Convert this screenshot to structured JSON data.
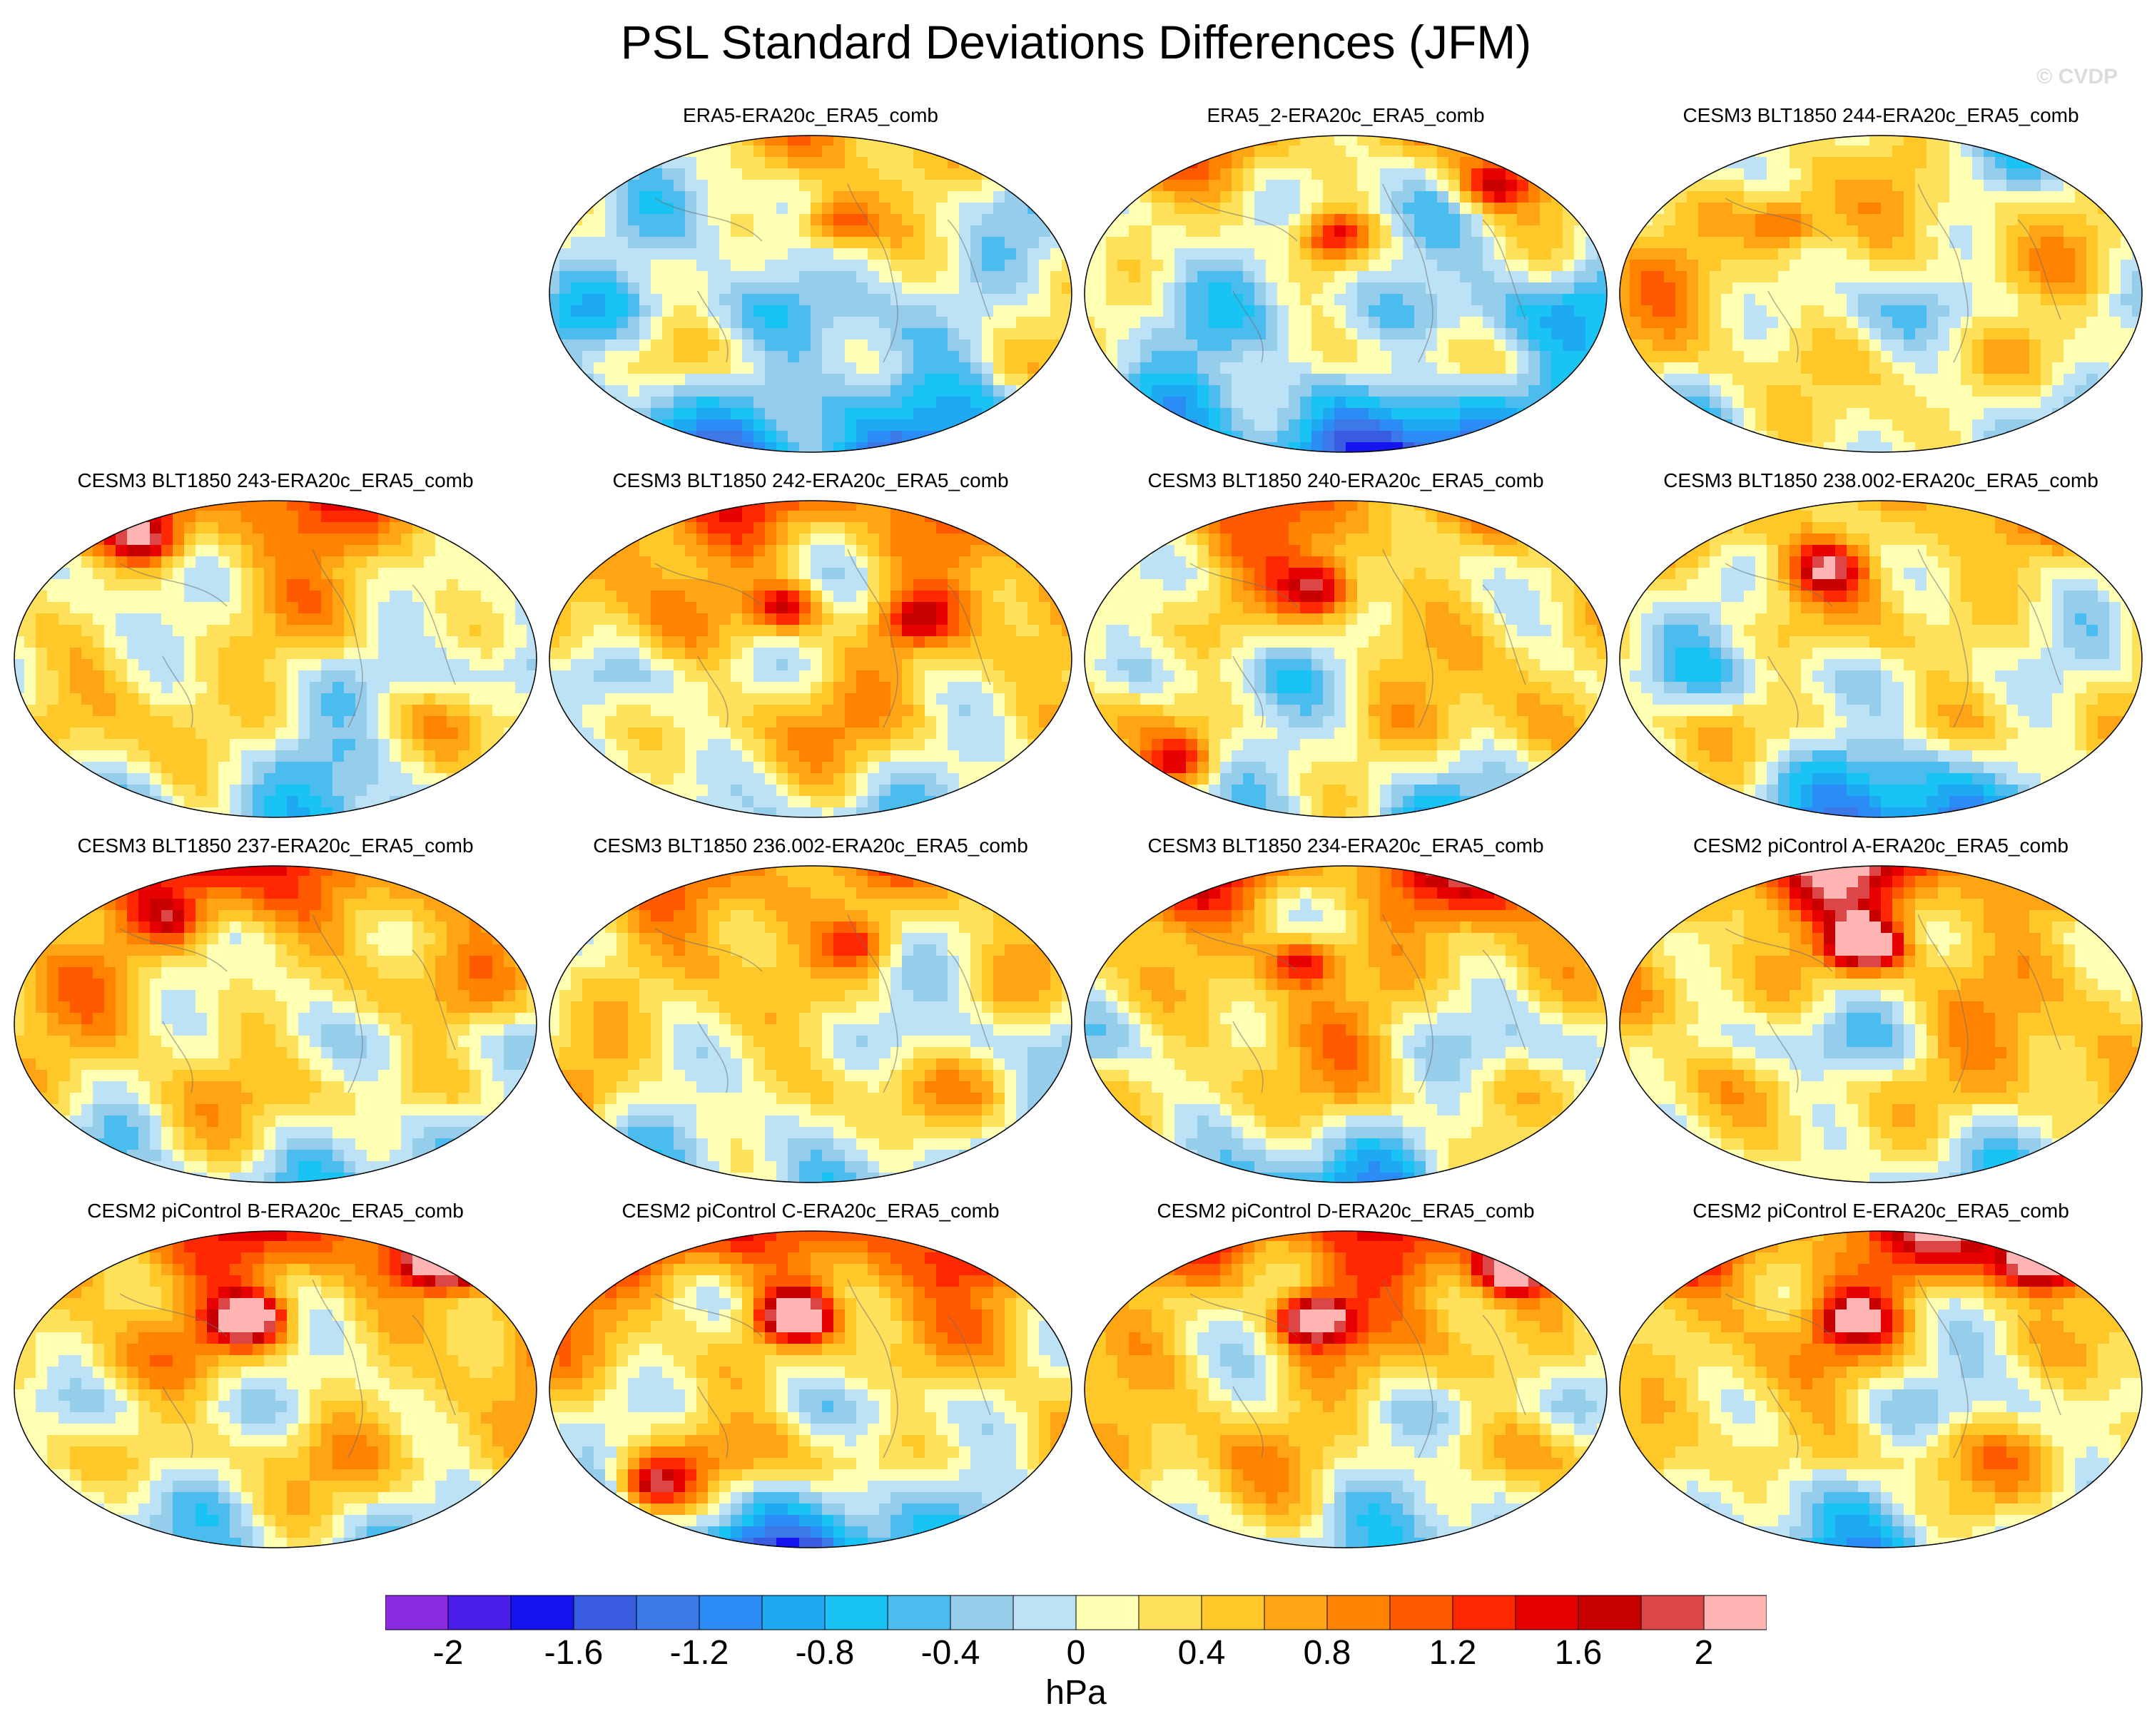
{
  "title": "PSL Standard Deviations Differences (JFM)",
  "watermark": "© CVDP",
  "panels": [
    {
      "label": "ERA5-ERA20c_ERA5_comb",
      "seed": 11,
      "bias": 0.0,
      "north": 0.8,
      "south": -1.4,
      "hot": [
        [
          0.55,
          0.28,
          1.2
        ]
      ]
    },
    {
      "label": "ERA5_2-ERA20c_ERA5_comb",
      "seed": 23,
      "bias": 0.0,
      "north": 1.0,
      "south": -1.6,
      "hot": [
        [
          0.48,
          0.32,
          1.4
        ],
        [
          0.78,
          0.16,
          1.5
        ]
      ]
    },
    {
      "label": "CESM3 BLT1850 244-ERA20c_ERA5_comb",
      "seed": 37,
      "bias": 0.35,
      "north": -0.6,
      "south": -0.6,
      "hot": [
        [
          0.32,
          0.28,
          1.0
        ]
      ]
    },
    {
      "label": "CESM3 BLT1850 243-ERA20c_ERA5_comb",
      "seed": 41,
      "bias": 0.3,
      "north": 1.2,
      "south": -0.9,
      "hot": [
        [
          0.25,
          0.12,
          1.4
        ]
      ]
    },
    {
      "label": "CESM3 BLT1850 242-ERA20c_ERA5_comb",
      "seed": 53,
      "bias": 0.45,
      "north": 0.9,
      "south": -0.8,
      "hot": [
        [
          0.45,
          0.34,
          1.5
        ],
        [
          0.7,
          0.38,
          1.1
        ]
      ]
    },
    {
      "label": "CESM3 BLT1850 240-ERA20c_ERA5_comb",
      "seed": 67,
      "bias": 0.35,
      "north": 0.8,
      "south": -0.9,
      "hot": [
        [
          0.45,
          0.28,
          1.4
        ],
        [
          0.18,
          0.82,
          1.2
        ]
      ]
    },
    {
      "label": "CESM3 BLT1850 238.002-ERA20c_ERA5_comb",
      "seed": 71,
      "bias": 0.3,
      "north": 0.6,
      "south": -1.5,
      "hot": [
        [
          0.4,
          0.22,
          1.4
        ]
      ]
    },
    {
      "label": "CESM3 BLT1850 237-ERA20c_ERA5_comb",
      "seed": 83,
      "bias": 0.4,
      "north": 1.2,
      "south": -1.0,
      "hot": [
        [
          0.3,
          0.18,
          1.0
        ]
      ]
    },
    {
      "label": "CESM3 BLT1850 236.002-ERA20c_ERA5_comb",
      "seed": 97,
      "bias": 0.35,
      "north": 0.8,
      "south": -0.9,
      "hot": [
        [
          0.6,
          0.25,
          1.0
        ]
      ]
    },
    {
      "label": "CESM3 BLT1850 234-ERA20c_ERA5_comb",
      "seed": 101,
      "bias": 0.4,
      "north": 1.3,
      "south": -1.1,
      "hot": [
        [
          0.42,
          0.3,
          1.5
        ]
      ]
    },
    {
      "label": "CESM2 piControl A-ERA20c_ERA5_comb",
      "seed": 113,
      "bias": 0.45,
      "north": 1.4,
      "south": -0.8,
      "hot": [
        [
          0.47,
          0.25,
          2.4
        ]
      ]
    },
    {
      "label": "CESM2 piControl B-ERA20c_ERA5_comb",
      "seed": 127,
      "bias": 0.45,
      "north": 1.2,
      "south": -1.0,
      "hot": [
        [
          0.45,
          0.28,
          2.3
        ],
        [
          0.82,
          0.1,
          2.1
        ]
      ]
    },
    {
      "label": "CESM2 piControl C-ERA20c_ERA5_comb",
      "seed": 131,
      "bias": 0.45,
      "north": 1.3,
      "south": -1.8,
      "hot": [
        [
          0.47,
          0.27,
          2.5
        ],
        [
          0.2,
          0.8,
          1.6
        ]
      ]
    },
    {
      "label": "CESM2 piControl D-ERA20c_ERA5_comb",
      "seed": 139,
      "bias": 0.45,
      "north": 1.2,
      "south": -1.0,
      "hot": [
        [
          0.44,
          0.28,
          2.4
        ],
        [
          0.82,
          0.12,
          2.2
        ]
      ]
    },
    {
      "label": "CESM2 piControl E-ERA20c_ERA5_comb",
      "seed": 149,
      "bias": 0.45,
      "north": 1.4,
      "south": -1.1,
      "hot": [
        [
          0.45,
          0.28,
          1.6
        ],
        [
          0.8,
          0.1,
          2.2
        ]
      ]
    }
  ],
  "chart_data": {
    "type": "heatmap",
    "title": "PSL Standard Deviations Differences (JFM)",
    "variable": "PSL standard deviation difference",
    "season": "JFM",
    "units": "hPa",
    "colorbar": {
      "levels": [
        -2.2,
        -2.0,
        -1.8,
        -1.6,
        -1.4,
        -1.2,
        -1.0,
        -0.8,
        -0.6,
        -0.4,
        -0.2,
        0.0,
        0.2,
        0.4,
        0.6,
        0.8,
        1.0,
        1.2,
        1.4,
        1.6,
        1.8,
        2.0,
        2.2
      ],
      "tick_labels": [
        "-2",
        "-1.6",
        "-1.2",
        "-0.8",
        "-0.4",
        "0",
        "0.4",
        "0.8",
        "1.2",
        "1.6",
        "2"
      ],
      "tick_values": [
        -2,
        -1.6,
        -1.2,
        -0.8,
        -0.4,
        0,
        0.4,
        0.8,
        1.2,
        1.6,
        2
      ],
      "colors": [
        "#8a2be2",
        "#4a1ee8",
        "#1414f0",
        "#3a5ce0",
        "#3c78e8",
        "#2a8cf4",
        "#1eaaf2",
        "#19c4f5",
        "#4bbcee",
        "#96cdeb",
        "#bde2f5",
        "#ffffb4",
        "#ffe05a",
        "#ffc828",
        "#ffa514",
        "#ff8200",
        "#ff5a00",
        "#ff2800",
        "#e60000",
        "#c80000",
        "#dc4646",
        "#ffb4b4"
      ],
      "unit_label": "hPa"
    }
  }
}
